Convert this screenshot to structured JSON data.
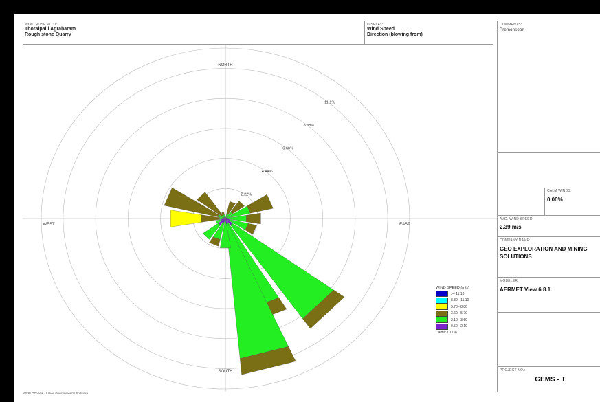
{
  "header": {
    "project_label": "WIND ROSE PLOT:",
    "project_line1": "Thoraipalli Agraharam",
    "project_line2": "Rough stone Quarry",
    "display_label": "DISPLAY:",
    "display_line1": "Wind Speed",
    "display_line2": "Direction (blowing from)"
  },
  "sidebar": {
    "comments_label": "COMMENTS:",
    "comments_value": "Premonsoon",
    "calm_label": "CALM WINDS:",
    "calm_value": "0.00%",
    "avg_label": "AVG. WIND SPEED:",
    "avg_value": "2.39 m/s",
    "company_label": "COMPANY NAME:",
    "company_value": "GEO EXPLORATION AND MINING SOLUTIONS",
    "modeler_label": "MODELER:",
    "modeler_value": "AERMET View 6.8.1",
    "project_no_label": "PROJECT NO.:",
    "project_no_value": "GEMS - T"
  },
  "footer": "WRPLOT View - Lakes Environmental Software",
  "colors": {
    "bin1": "#0000c8",
    "bin2": "#00ffff",
    "bin3": "#ffff00",
    "bin4": "#7a6f14",
    "bin5": "#22ee22",
    "bin6": "#7a22cc"
  },
  "chart_data": {
    "type": "wind-rose",
    "direction_labels": [
      "NORTH",
      "EAST",
      "SOUTH",
      "WEST"
    ],
    "ring_labels": [
      "2.22%",
      "4.44%",
      "6.66%",
      "8.88%",
      "11.1%"
    ],
    "ring_values": [
      2.22,
      4.44,
      6.66,
      8.88,
      11.1
    ],
    "legend_title": "WIND SPEED (m/s)",
    "legend_calms": "Calms: 0.00%",
    "bins": [
      {
        "label": ">= 11.10",
        "color": "#0000c8"
      },
      {
        "label": "8.80 - 11.10",
        "color": "#00ffff"
      },
      {
        "label": "5.70 - 8.80",
        "color": "#ffff00"
      },
      {
        "label": "3.60 - 5.70",
        "color": "#7a6f14"
      },
      {
        "label": "2.10 - 3.60",
        "color": "#22ee22"
      },
      {
        "label": "0.50 - 2.10",
        "color": "#7a22cc"
      }
    ],
    "sectors": [
      {
        "dir": 22.5,
        "b6": 0.1,
        "b5": 0.3,
        "b4": 0.9
      },
      {
        "dir": 45,
        "b6": 0.1,
        "b5": 0.5,
        "b4": 1.0
      },
      {
        "dir": 67.5,
        "b6": 0.15,
        "b5": 1.6,
        "b4": 1.6
      },
      {
        "dir": 90,
        "b6": 0.15,
        "b5": 1.3,
        "b4": 1.0
      },
      {
        "dir": 112.5,
        "b6": 0.3,
        "b5": 1.3,
        "b4": 0.6
      },
      {
        "dir": 135,
        "b6": 0.6,
        "b5": 8.5,
        "b4": 0.9
      },
      {
        "dir": 157.5,
        "b6": 0.4,
        "b5": 6.5,
        "b4": 1.0
      },
      {
        "dir": 165,
        "b6": 0.4,
        "b5": 10.0,
        "b4": 1.2
      },
      {
        "dir": 180,
        "b6": 0.2,
        "b5": 2.0
      },
      {
        "dir": 202.5,
        "b6": 0.3,
        "b5": 1.3,
        "b4": 0.5
      },
      {
        "dir": 225,
        "b6": 0.6,
        "b5": 1.3
      },
      {
        "dir": 247.5,
        "b6": 0.3,
        "b5": 0.4
      },
      {
        "dir": 270,
        "b6": 0.2,
        "b5": 0.2,
        "b4": 1.3,
        "b3": 2.1
      },
      {
        "dir": 292.5,
        "b6": 0.2,
        "b5": 0.3,
        "b4": 3.8
      },
      {
        "dir": 315,
        "b6": 0.1,
        "b5": 0.1,
        "b4": 2.2
      },
      {
        "dir": 337.5,
        "b6": 0.1,
        "b5": 0.2,
        "b4": 0.2
      }
    ]
  }
}
